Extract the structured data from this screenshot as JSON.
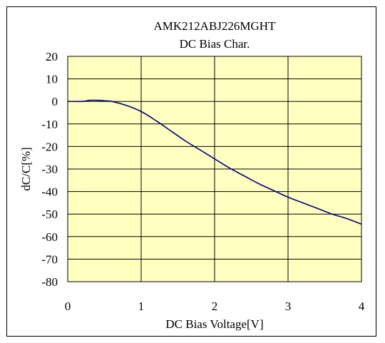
{
  "chart_data": {
    "type": "line",
    "title": "AMK212ABJ226MGHT",
    "subtitle": "DC Bias Char.",
    "xlabel": "DC Bias Voltage[V]",
    "ylabel": "dC/C[%]",
    "xlim": [
      0,
      4
    ],
    "ylim": [
      -80,
      20
    ],
    "x_ticks": [
      0,
      1,
      2,
      3,
      4
    ],
    "y_ticks": [
      20,
      10,
      0,
      -10,
      -20,
      -30,
      -40,
      -50,
      -60,
      -70,
      -80
    ],
    "grid": true,
    "plot_background": "#ffffc0",
    "line_color": "#000080",
    "series": [
      {
        "x": [
          0,
          0.2,
          0.3,
          0.4,
          0.5,
          0.6,
          0.8,
          1.0,
          1.2,
          1.4,
          1.6,
          1.8,
          2.0,
          2.2,
          2.4,
          2.6,
          2.8,
          3.0,
          3.2,
          3.4,
          3.6,
          3.8,
          4.0
        ],
        "values": [
          0,
          0,
          0.5,
          0.5,
          0.3,
          0,
          -1.8,
          -4.5,
          -8.5,
          -13,
          -17.5,
          -21.5,
          -25.5,
          -29.5,
          -33,
          -36.5,
          -39.5,
          -42.5,
          -45,
          -47.5,
          -50,
          -52,
          -54.5
        ]
      }
    ]
  }
}
